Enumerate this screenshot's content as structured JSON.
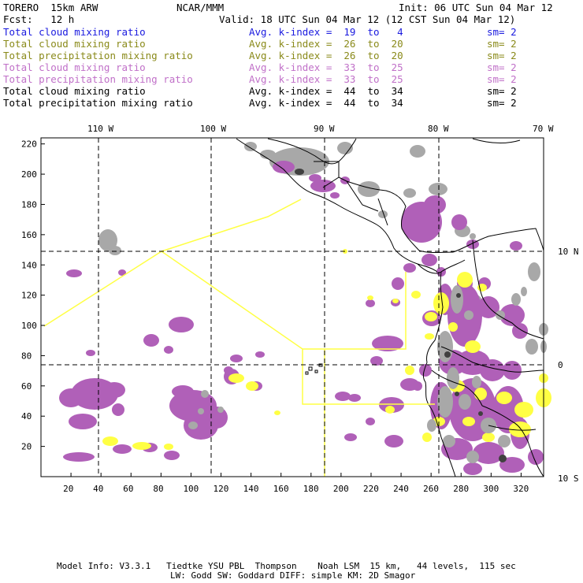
{
  "header": {
    "model": "TORERO  15km ARW",
    "org": "NCAR/MMM",
    "init": "Init: 06 UTC Sun 04 Mar 12",
    "fcst": "Fcst:   12 h",
    "valid": "Valid: 18 UTC Sun 04 Mar 12 (12 CST Sun 04 Mar 12)"
  },
  "legend": [
    {
      "field": "Total cloud mixing ratio",
      "kindex": "Avg. k-index =  19  to   4",
      "sm": "sm= 2",
      "color": "#1a1adf"
    },
    {
      "field": "Total cloud mixing ratio",
      "kindex": "Avg. k-index =  26  to  20",
      "sm": "sm= 2",
      "color": "#8a8a1a"
    },
    {
      "field": "Total precipitation mixing ratio",
      "kindex": "Avg. k-index =  26  to  20",
      "sm": "sm= 2",
      "color": "#8a8a1a"
    },
    {
      "field": "Total cloud mixing ratio",
      "kindex": "Avg. k-index =  33  to  25",
      "sm": "sm= 2",
      "color": "#c070c8"
    },
    {
      "field": "Total precipitation mixing ratio",
      "kindex": "Avg. k-index =  33  to  25",
      "sm": "sm= 2",
      "color": "#c070c8"
    },
    {
      "field": "Total cloud mixing ratio",
      "kindex": "Avg. k-index =  44  to  34",
      "sm": "sm= 2",
      "color": "#000000"
    },
    {
      "field": "Total precipitation mixing ratio",
      "kindex": "Avg. k-index =  44  to  34",
      "sm": "sm= 2",
      "color": "#000000"
    }
  ],
  "map": {
    "top_lon_labels": [
      "110 W",
      "100 W",
      "90 W",
      "80 W",
      "70 W"
    ],
    "right_lat_labels": [
      "10 N",
      "0",
      "10 S"
    ],
    "y_grid_labels": [
      "220",
      "200",
      "180",
      "160",
      "140",
      "120",
      "100",
      "80",
      "60",
      "40",
      "20"
    ],
    "x_grid_labels": [
      "20",
      "40",
      "60",
      "80",
      "100",
      "120",
      "140",
      "160",
      "180",
      "200",
      "220",
      "240",
      "260",
      "280",
      "300",
      "320"
    ],
    "colors": {
      "purple": "#b060b8",
      "gray": "#a8a8a8",
      "dark": "#404040",
      "yellow": "#ffff44",
      "yellow_line": "#ffff44"
    }
  },
  "footer": {
    "line1": "Model Info: V3.3.1   Tiedtke YSU PBL  Thompson    Noah LSM  15 km,   44 levels,  115 sec",
    "line2": "LW: Godd SW: Goddard DIFF: simple KM: 2D Smagor"
  }
}
